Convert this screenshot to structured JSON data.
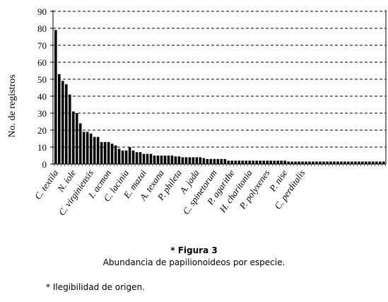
{
  "chart_data": {
    "type": "bar",
    "ylabel": "No. de registros",
    "ylim": [
      0,
      90
    ],
    "yticks": [
      0,
      10,
      20,
      30,
      40,
      50,
      60,
      70,
      80,
      90
    ],
    "grid": "horizontal dashed",
    "bar_color": "#000000",
    "values": [
      79,
      53,
      49,
      47,
      41,
      31,
      30,
      24,
      19,
      19,
      18,
      16,
      16,
      13,
      13,
      13,
      12,
      11,
      9,
      8,
      8,
      10,
      8,
      7,
      7,
      6,
      6,
      6,
      5,
      5,
      5,
      5,
      5,
      5,
      4.5,
      4.5,
      4,
      4,
      4,
      4,
      4,
      4,
      3.5,
      3,
      3,
      3,
      3,
      3,
      3,
      2,
      2,
      2,
      2,
      2,
      2,
      2,
      2,
      2,
      2,
      2,
      2,
      2,
      2,
      2,
      2,
      2,
      1.5,
      1.5,
      1.5,
      1.5,
      1.5,
      1.5,
      1.5,
      1.5,
      1.5,
      1.5,
      1.5,
      1.5,
      1.5,
      1.5,
      1.5,
      1.5,
      1.5,
      1.5,
      1.5,
      1.5,
      1.5,
      1.5,
      1.5,
      1.5,
      1.5,
      1.5,
      1.5,
      1.5
    ],
    "category_labels": [
      {
        "index": 0,
        "label": "C. textila"
      },
      {
        "index": 5,
        "label": "N. iole"
      },
      {
        "index": 10,
        "label": "C. virginiensis"
      },
      {
        "index": 15,
        "label": "I. acmon"
      },
      {
        "index": 20,
        "label": "C. lacinia"
      },
      {
        "index": 25,
        "label": "E. mazai"
      },
      {
        "index": 30,
        "label": "A. texana"
      },
      {
        "index": 35,
        "label": "P. phileta"
      },
      {
        "index": 40,
        "label": "A. jada"
      },
      {
        "index": 45,
        "label": "C. spinetorum"
      },
      {
        "index": 50,
        "label": "P. agarithe"
      },
      {
        "index": 55,
        "label": "H. charitonia"
      },
      {
        "index": 60,
        "label": "P. polyxenes"
      },
      {
        "index": 65,
        "label": "P. nise"
      },
      {
        "index": 70,
        "label": "C. perditalis"
      }
    ]
  },
  "caption": {
    "title": "* Figura 3",
    "subtitle": "Abundancia de papilionoideos por especie."
  },
  "footnote": "* Ilegibilidad de origen."
}
